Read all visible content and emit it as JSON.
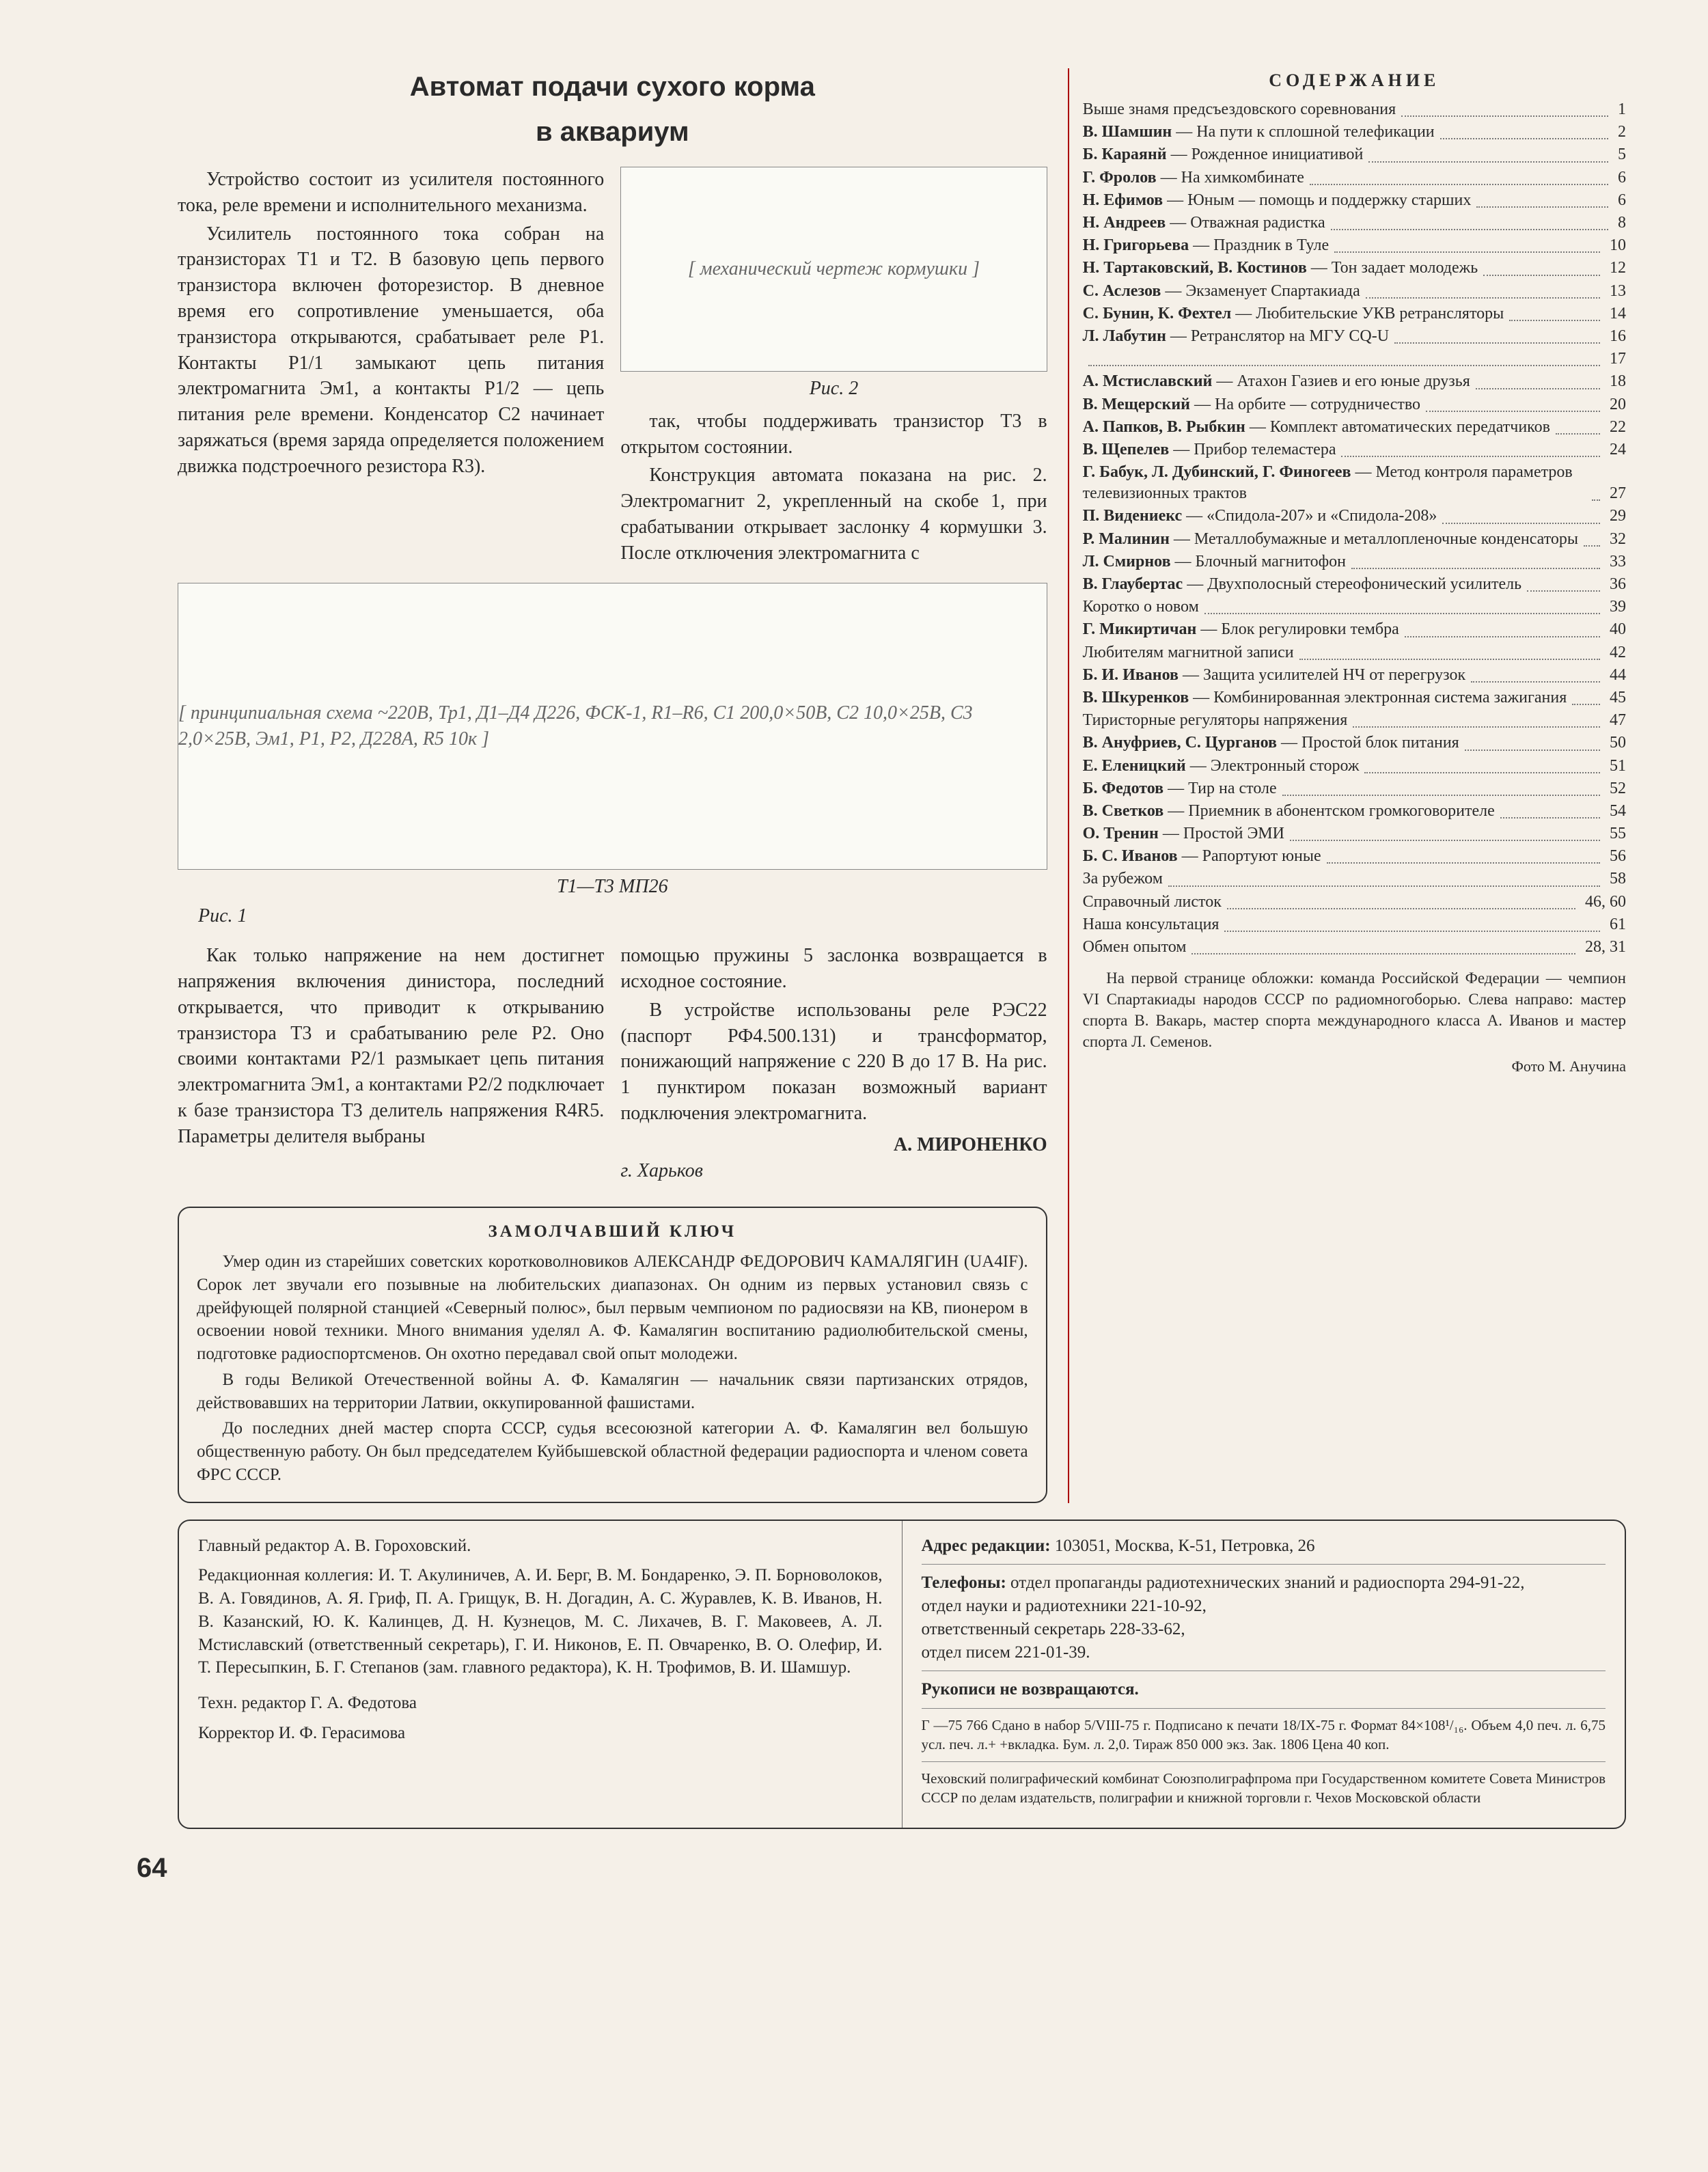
{
  "article": {
    "title": "Автомат подачи сухого корма",
    "subtitle": "в аквариум",
    "p1": "Устройство состоит из усилителя постоянного тока, реле времени и исполнительного механизма.",
    "p2": "Усилитель постоянного тока собран на транзисторах T1 и T2. В базовую цепь первого транзистора включен фоторезистор. В дневное время его сопротивление уменьшается, оба транзистора открываются, срабатывает реле P1. Контакты P1/1 замыкают цепь питания электромагнита Эм1, а контакты P1/2 — цепь питания реле времени. Конденсатор C2 начинает заряжаться (время заряда определяется положением движка подстроечного резистора R3).",
    "p3": "так, чтобы поддерживать транзистор T3 в открытом состоянии.",
    "p4": "Конструкция автомата показана на рис. 2. Электромагнит 2, укрепленный на скобе 1, при срабатывании открывает заслонку 4 кормушки 3. После отключения электромагнита с",
    "p5": "Как только напряжение на нем достигнет напряжения включения динистора, последний открывается, что приводит к открыванию транзистора T3 и срабатыванию реле P2. Оно своими контактами P2/1 размыкает цепь питания электромагнита Эм1, а контактами P2/2 подключает к базе транзистора T3 делитель напряжения R4R5. Параметры делителя выбраны",
    "p6": "помощью пружины 5 заслонка возвращается в исходное состояние.",
    "p7": "В устройстве использованы реле РЭС22 (паспорт РФ4.500.131) и трансформатор, понижающий напряжение с 220 В до 17 В. На рис. 1 пунктиром показан возможный вариант подключения электромагнита.",
    "author": "А. МИРОНЕНКО",
    "city": "г. Харьков",
    "fig1_label": "Рис. 1",
    "fig2_label": "Рис. 2",
    "schematic_label": "T1—T3 МП26"
  },
  "obit": {
    "title": "ЗАМОЛЧАВШИЙ КЛЮЧ",
    "p1": "Умер один из старейших советских коротковолновиков АЛЕКСАНДР ФЕДОРОВИЧ КАМАЛЯГИН (UA4IF). Сорок лет звучали его позывные на любительских диапазонах. Он одним из первых установил связь с дрейфующей полярной станцией «Северный полюс», был первым чемпионом по радиосвязи на КВ, пионером в освоении новой техники. Много внимания уделял А. Ф. Камалягин воспитанию радиолюбительской смены, подготовке радиоспортсменов. Он охотно передавал свой опыт молодежи.",
    "p2": "В годы Великой Отечественной войны А. Ф. Камалягин — начальник связи партизанских отрядов, действовавших на территории Латвии, оккупированной фашистами.",
    "p3": "До последних дней мастер спорта СССР, судья всесоюзной категории А. Ф. Камалягин вел большую общественную работу. Он был председателем Куйбышевской областной федерации радиоспорта и членом совета ФРС СССР."
  },
  "masthead": {
    "editor": "Главный редактор А. В. Гороховский.",
    "board": "Редакционная коллегия: И. Т. Акулиничев, А. И. Берг, В. М. Бондаренко, Э. П. Борноволоков, В. А. Говядинов, А. Я. Гриф, П. А. Грищук, В. Н. Догадин, А. С. Журавлев, К. В. Иванов, Н. В. Казанский, Ю. К. Калинцев, Д. Н. Кузнецов, М. С. Лихачев, В. Г. Маковеев, А. Л. Мстиславский (ответственный секретарь), Г. И. Никонов, Е. П. Овчаренко, В. О. Олефир, И. Т. Пересыпкин, Б. Г. Степанов (зам. главного редактора), К. Н. Трофимов, В. И. Шамшур.",
    "tech": "Техн. редактор Г. А. Федотова",
    "korr": "Корректор И. Ф. Герасимова",
    "address_label": "Адрес редакции:",
    "address": "103051, Москва, К-51, Петровка, 26",
    "phones_label": "Телефоны:",
    "phones": "отдел пропаганды радиотехнических знаний и радиоспорта 294-91-22,\nотдел науки и радиотехники 221-10-92,\nответственный секретарь 228-33-62,\nотдел писем 221-01-39.",
    "noreturn": "Рукописи не возвращаются.",
    "imprint": "Г —75 766 Сдано в набор 5/VIII-75 г. Подписано к печати 18/IX-75 г. Формат 84×108¹/₁₆. Объем 4,0 печ. л. 6,75 усл. печ. л.+ +вкладка. Бум. л. 2,0. Тираж 850 000 экз. Зак. 1806 Цена 40 коп.",
    "printer": "Чеховский полиграфический комбинат Союзполиграфпрома при Государственном комитете Совета Министров СССР по делам издательств, полиграфии и книжной торговли г. Чехов Московской области"
  },
  "toc": {
    "heading": "СОДЕРЖАНИЕ",
    "items": [
      {
        "t": "Выше знамя предсъездовского соревнования",
        "p": "1"
      },
      {
        "t": "<b>В. Шамшин</b> — На пути к сплошной телефикации",
        "p": "2"
      },
      {
        "t": "<b>Б. Караянй</b> — Рожденное инициативой",
        "p": "5"
      },
      {
        "t": "<b>Г. Фролов</b> — На химкомбинате",
        "p": "6"
      },
      {
        "t": "<b>Н. Ефимов</b> — Юным — помощь и поддержку старших",
        "p": "6"
      },
      {
        "t": "<b>Н. Андреев</b> — Отважная радистка",
        "p": "8"
      },
      {
        "t": "<b>Н. Григорьева</b> — Праздник в Туле",
        "p": "10"
      },
      {
        "t": "<b>Н. Тартаковский, В. Костинов</b> — Тон задает молодежь",
        "p": "12"
      },
      {
        "t": "<b>С. Аслезов</b> — Экзаменует Спартакиада",
        "p": "13"
      },
      {
        "t": "<b>С. Бунин, К. Фехтел</b> — Любительские УКВ ретрансляторы",
        "p": "14"
      },
      {
        "t": "<b>Л. Лабутин</b> — Ретранслятор на МГУ CQ-U",
        "p": "16"
      },
      {
        "t": "",
        "p": "17"
      },
      {
        "t": "<b>А. Мстиславский</b> — Атахон Газиев и его юные друзья",
        "p": "18"
      },
      {
        "t": "<b>В. Мещерский</b> — На орбите — сотрудничество",
        "p": "20"
      },
      {
        "t": "<b>А. Папков, В. Рыбкин</b> — Комплект автоматических передатчиков",
        "p": "22"
      },
      {
        "t": "<b>В. Щепелев</b> — Прибор телемастера",
        "p": "24"
      },
      {
        "t": "<b>Г. Бабук, Л. Дубинский, Г. Финогеев</b> — Метод контроля параметров телевизионных трактов",
        "p": "27"
      },
      {
        "t": "<b>П. Видениекс</b> — «Спидола-207» и «Спидола-208»",
        "p": "29"
      },
      {
        "t": "<b>Р. Малинин</b> — Металлобумажные и металлопленочные конденсаторы",
        "p": "32"
      },
      {
        "t": "<b>Л. Смирнов</b> — Блочный магнитофон",
        "p": "33"
      },
      {
        "t": "<b>В. Глаубертас</b> — Двухполосный стереофонический усилитель",
        "p": "36"
      },
      {
        "t": "Коротко о новом",
        "p": "39"
      },
      {
        "t": "<b>Г. Микиртичан</b> — Блок регулировки тембра",
        "p": "40"
      },
      {
        "t": "Любителям магнитной записи",
        "p": "42"
      },
      {
        "t": "<b>Б. И. Иванов</b> — Защита усилителей НЧ от перегрузок",
        "p": "44"
      },
      {
        "t": "<b>В. Шкуренков</b> — Комбинированная электронная система зажигания",
        "p": "45"
      },
      {
        "t": "Тиристорные регуляторы напряжения",
        "p": "47"
      },
      {
        "t": "<b>В. Ануфриев, С. Цурганов</b> — Простой блок питания",
        "p": "50"
      },
      {
        "t": "<b>Е. Еленицкий</b> — Электронный сторож",
        "p": "51"
      },
      {
        "t": "<b>Б. Федотов</b> — Тир на столе",
        "p": "52"
      },
      {
        "t": "<b>В. Светков</b> — Приемник в абонентском громкоговорителе",
        "p": "54"
      },
      {
        "t": "<b>О. Тренин</b> — Простой ЭМИ",
        "p": "55"
      },
      {
        "t": "<b>Б. С. Иванов</b> — Рапортуют юные",
        "p": "56"
      },
      {
        "t": "За рубежом",
        "p": "58"
      },
      {
        "t": "Справочный листок",
        "p": "46, 60"
      },
      {
        "t": "Наша консультация",
        "p": "61"
      },
      {
        "t": "Обмен опытом",
        "p": "28, 31"
      }
    ],
    "cover": "На первой странице обложки: команда Российской Федерации — чемпион VI Спартакиады народов СССР по радиомногоборью. Слева направо: мастер спорта В. Вакарь, мастер спорта международного класса А. Иванов и мастер спорта Л. Семенов.",
    "photo": "Фото М. Анучина"
  },
  "page_number": "64",
  "fig2_placeholder": "[ механический чертеж кормушки ]",
  "fig1_placeholder": "[ принципиальная схема ~220В, Тр1, Д1–Д4 Д226, ФСК-1, R1–R6, C1 200,0×50В, C2 10,0×25В, C3 2,0×25В, Эм1, P1, P2, Д228А, R5 10к ]"
}
